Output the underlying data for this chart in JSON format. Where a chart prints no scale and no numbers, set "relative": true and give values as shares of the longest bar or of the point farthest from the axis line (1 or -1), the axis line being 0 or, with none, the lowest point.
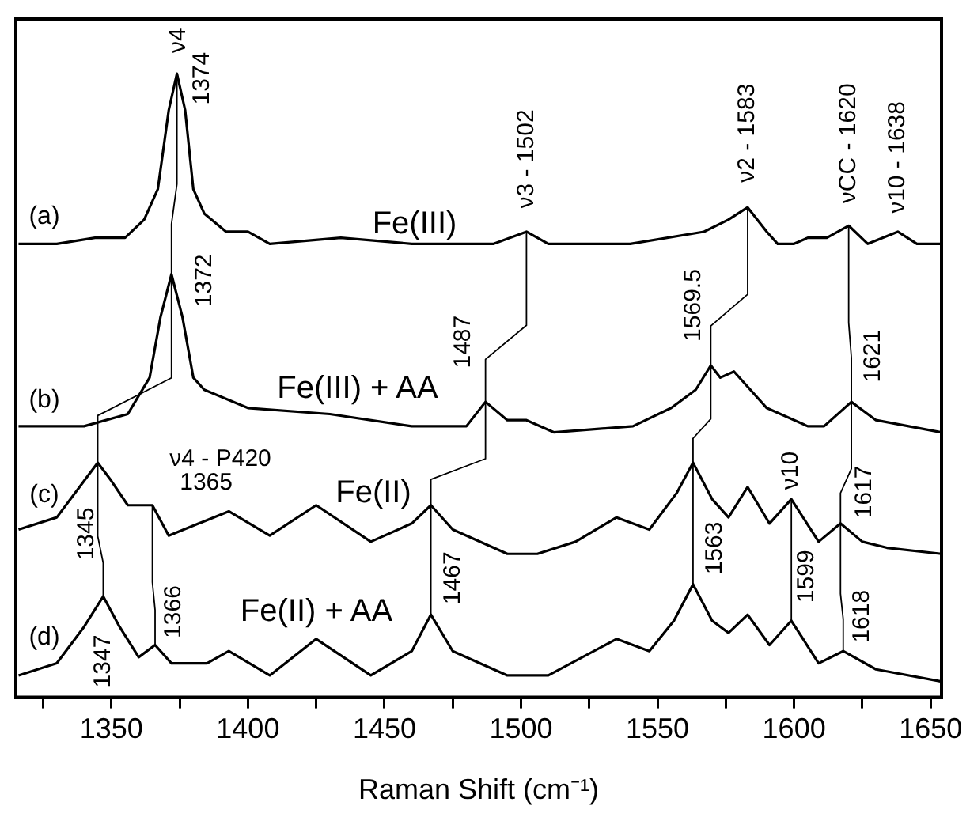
{
  "chart_data": {
    "type": "line",
    "relative": true,
    "xlabel": "Raman Shift (cm⁻¹)",
    "xlim": [
      1315,
      1654
    ],
    "xticks": [
      {
        "value": 1325,
        "label": null
      },
      1350,
      {
        "value": 1375,
        "label": null
      },
      1400,
      {
        "value": 1425,
        "label": null
      },
      1450,
      {
        "value": 1475,
        "label": null
      },
      1500,
      {
        "value": 1525,
        "label": null
      },
      1550,
      {
        "value": 1575,
        "label": null
      },
      1600,
      {
        "value": 1625,
        "label": null
      },
      1650
    ],
    "grid": false,
    "legend": false,
    "series": [
      {
        "color": "#000000",
        "x": [
          1316,
          1330,
          1344,
          1355,
          1362,
          1367,
          1371,
          1374,
          1377,
          1380,
          1384,
          1392,
          1400,
          1408,
          1434,
          1460,
          1490,
          1502,
          1510,
          1540,
          1567,
          1576,
          1583,
          1590,
          1594,
          1600,
          1605,
          1612,
          1620,
          1627,
          1638,
          1645,
          1654
        ],
        "values": [
          0.72,
          0.72,
          0.73,
          0.73,
          0.76,
          0.81,
          0.94,
          1.0,
          0.94,
          0.81,
          0.77,
          0.74,
          0.74,
          0.72,
          0.73,
          0.72,
          0.72,
          0.74,
          0.72,
          0.72,
          0.74,
          0.76,
          0.78,
          0.74,
          0.72,
          0.72,
          0.73,
          0.73,
          0.75,
          0.72,
          0.74,
          0.72,
          0.72
        ]
      },
      {
        "color": "#000000",
        "x": [
          1316,
          1340,
          1356,
          1364,
          1368,
          1372,
          1376,
          1380,
          1384,
          1400,
          1430,
          1460,
          1480,
          1487,
          1495,
          1502,
          1512,
          1541,
          1555,
          1564,
          1569.5,
          1573,
          1578,
          1590,
          1605,
          1611,
          1621,
          1630,
          1654
        ],
        "values": [
          0.42,
          0.42,
          0.44,
          0.5,
          0.6,
          0.67,
          0.6,
          0.5,
          0.48,
          0.45,
          0.44,
          0.42,
          0.42,
          0.46,
          0.43,
          0.43,
          0.41,
          0.42,
          0.45,
          0.48,
          0.52,
          0.5,
          0.51,
          0.45,
          0.42,
          0.42,
          0.46,
          0.43,
          0.41
        ]
      },
      {
        "color": "#000000",
        "x": [
          1316,
          1330,
          1340,
          1345,
          1350,
          1356,
          1365,
          1371,
          1382,
          1393,
          1408,
          1425,
          1445,
          1460,
          1467,
          1475,
          1495,
          1506,
          1520,
          1535,
          1547,
          1557,
          1563,
          1570,
          1576,
          1583,
          1591,
          1599,
          1609,
          1617,
          1625,
          1634,
          1654
        ],
        "values": [
          0.25,
          0.27,
          0.33,
          0.36,
          0.33,
          0.29,
          0.29,
          0.24,
          0.26,
          0.28,
          0.24,
          0.29,
          0.23,
          0.26,
          0.29,
          0.25,
          0.21,
          0.21,
          0.23,
          0.27,
          0.25,
          0.31,
          0.36,
          0.3,
          0.27,
          0.32,
          0.26,
          0.3,
          0.23,
          0.26,
          0.23,
          0.22,
          0.21
        ]
      },
      {
        "color": "#000000",
        "x": [
          1316,
          1330,
          1340,
          1347,
          1353,
          1360,
          1366,
          1372,
          1385,
          1393,
          1408,
          1425,
          1445,
          1460,
          1467,
          1475,
          1495,
          1510,
          1535,
          1547,
          1556,
          1563,
          1570,
          1576,
          1583,
          1591,
          1599,
          1609,
          1618,
          1630,
          1654
        ],
        "values": [
          0.01,
          0.03,
          0.09,
          0.14,
          0.09,
          0.04,
          0.06,
          0.03,
          0.03,
          0.05,
          0.01,
          0.07,
          0.01,
          0.05,
          0.11,
          0.05,
          0.01,
          0.01,
          0.07,
          0.05,
          0.1,
          0.16,
          0.1,
          0.08,
          0.11,
          0.06,
          0.1,
          0.03,
          0.05,
          0.02,
          0.0
        ]
      }
    ],
    "annotations": [
      "(a)",
      "(b)",
      "(c)",
      "(d)",
      "Fe(III)",
      "Fe(III) + AA",
      "Fe(II)",
      "Fe(II) + AA",
      {
        "text": "ν4",
        "x": 1374,
        "y": 1.0
      },
      {
        "text": "1374",
        "x": 1374,
        "y": 1.0
      },
      {
        "text": "ν3 - 1502",
        "x": 1502,
        "y": 0.74
      },
      {
        "text": "ν2 - 1583",
        "x": 1583,
        "y": 0.78
      },
      {
        "text": "νCC - 1620",
        "x": 1620,
        "y": 0.75
      },
      {
        "text": "ν10 - 1638",
        "x": 1638,
        "y": 0.74
      },
      {
        "text": "1372",
        "x": 1372,
        "y": 0.67
      },
      {
        "text": "1487",
        "x": 1487,
        "y": 0.46
      },
      {
        "text": "1569.5",
        "x": 1569.5,
        "y": 0.52
      },
      {
        "text": "1621",
        "x": 1621,
        "y": 0.46
      },
      {
        "text": "ν4 - P420",
        "x": 1365,
        "y": 0.29
      },
      {
        "text": "1365",
        "x": 1365,
        "y": 0.29
      },
      {
        "text": "1345",
        "x": 1345,
        "y": 0.36
      },
      {
        "text": "1467",
        "x": 1467,
        "y": 0.29
      },
      {
        "text": "1563",
        "x": 1563,
        "y": 0.36
      },
      {
        "text": "ν10",
        "x": 1599,
        "y": 0.3
      },
      {
        "text": "1617",
        "x": 1617,
        "y": 0.26
      },
      {
        "text": "1347",
        "x": 1347,
        "y": 0.14
      },
      {
        "text": "1366",
        "x": 1366,
        "y": 0.06
      },
      {
        "text": "1599",
        "x": 1599,
        "y": 0.1
      },
      {
        "text": "1618",
        "x": 1618,
        "y": 0.05
      }
    ]
  }
}
